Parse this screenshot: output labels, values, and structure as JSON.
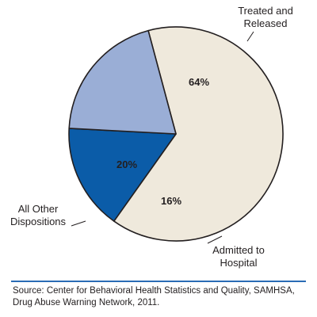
{
  "chart_data": {
    "type": "pie",
    "slices": [
      {
        "category": "Treated and Released",
        "value": 64,
        "percent_label": "64%",
        "color": "#efe9dc"
      },
      {
        "category": "Admitted to Hospital",
        "value": 16,
        "percent_label": "16%",
        "color": "#0b5ca8"
      },
      {
        "category": "All Other Dispositions",
        "value": 20,
        "percent_label": "20%",
        "color": "#9aaed6"
      }
    ],
    "category_label_lines": [
      [
        "Treated and",
        "Released"
      ],
      [
        "Admitted to",
        "Hospital"
      ],
      [
        "All Other",
        "Dispositions"
      ]
    ],
    "stroke_color": "#231f20"
  },
  "source": "Source: Center for Behavioral Health Statistics and Quality, SAMHSA, Drug Abuse Warning Network, 2011."
}
